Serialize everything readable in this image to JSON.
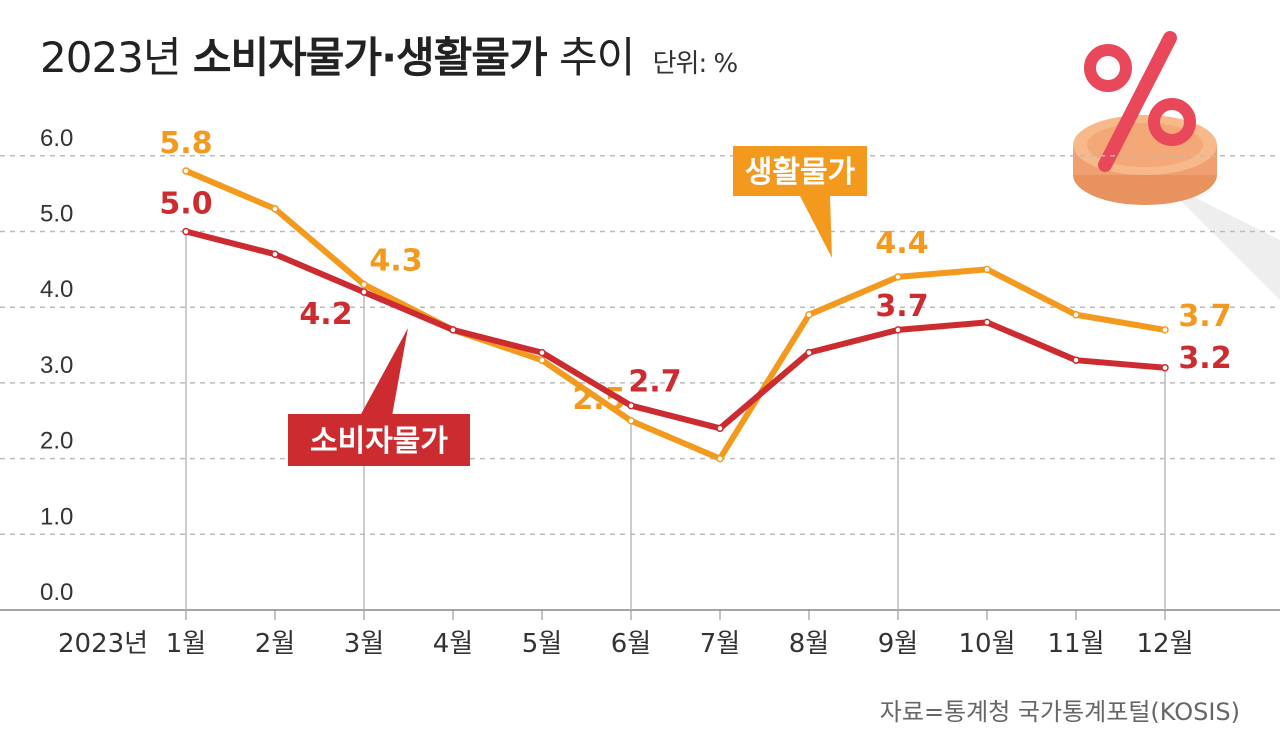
{
  "title": {
    "prefix": "2023년",
    "main": "소비자물가·생활물가",
    "suffix": "추이",
    "unit": "단위: %"
  },
  "source": "자료=통계청 국가통계포털(KOSIS)",
  "colors": {
    "consumer": "#cc2b30",
    "living": "#f39a1e",
    "grid": "#aaaaaa",
    "axis_text": "#333333"
  },
  "decoration": "percent-coin-icon",
  "chart_data": {
    "type": "line",
    "title": "2023년 소비자물가·생활물가 추이",
    "unit": "단위: %",
    "x_prefix": "2023년",
    "categories": [
      "1월",
      "2월",
      "3월",
      "4월",
      "5월",
      "6월",
      "7월",
      "8월",
      "9월",
      "10월",
      "11월",
      "12월"
    ],
    "ylim": [
      0,
      6
    ],
    "yticks": [
      "0.0",
      "1.0",
      "2.0",
      "3.0",
      "4.0",
      "5.0",
      "6.0"
    ],
    "grid": true,
    "series": [
      {
        "name": "생활물가",
        "color": "#f39a1e",
        "values": [
          5.8,
          5.3,
          4.3,
          3.7,
          3.3,
          2.5,
          2.0,
          3.9,
          4.4,
          4.5,
          3.9,
          3.7
        ],
        "labels": {
          "0": "5.8",
          "2": "4.3",
          "5": "2.5",
          "8": "4.4",
          "11": "3.7"
        }
      },
      {
        "name": "소비자물가",
        "color": "#cc2b30",
        "values": [
          5.0,
          4.7,
          4.2,
          3.7,
          3.4,
          2.7,
          2.4,
          3.4,
          3.7,
          3.8,
          3.3,
          3.2
        ],
        "labels": {
          "0": "5.0",
          "2": "4.2",
          "5": "2.7",
          "8": "3.7",
          "11": "3.2"
        }
      }
    ]
  }
}
